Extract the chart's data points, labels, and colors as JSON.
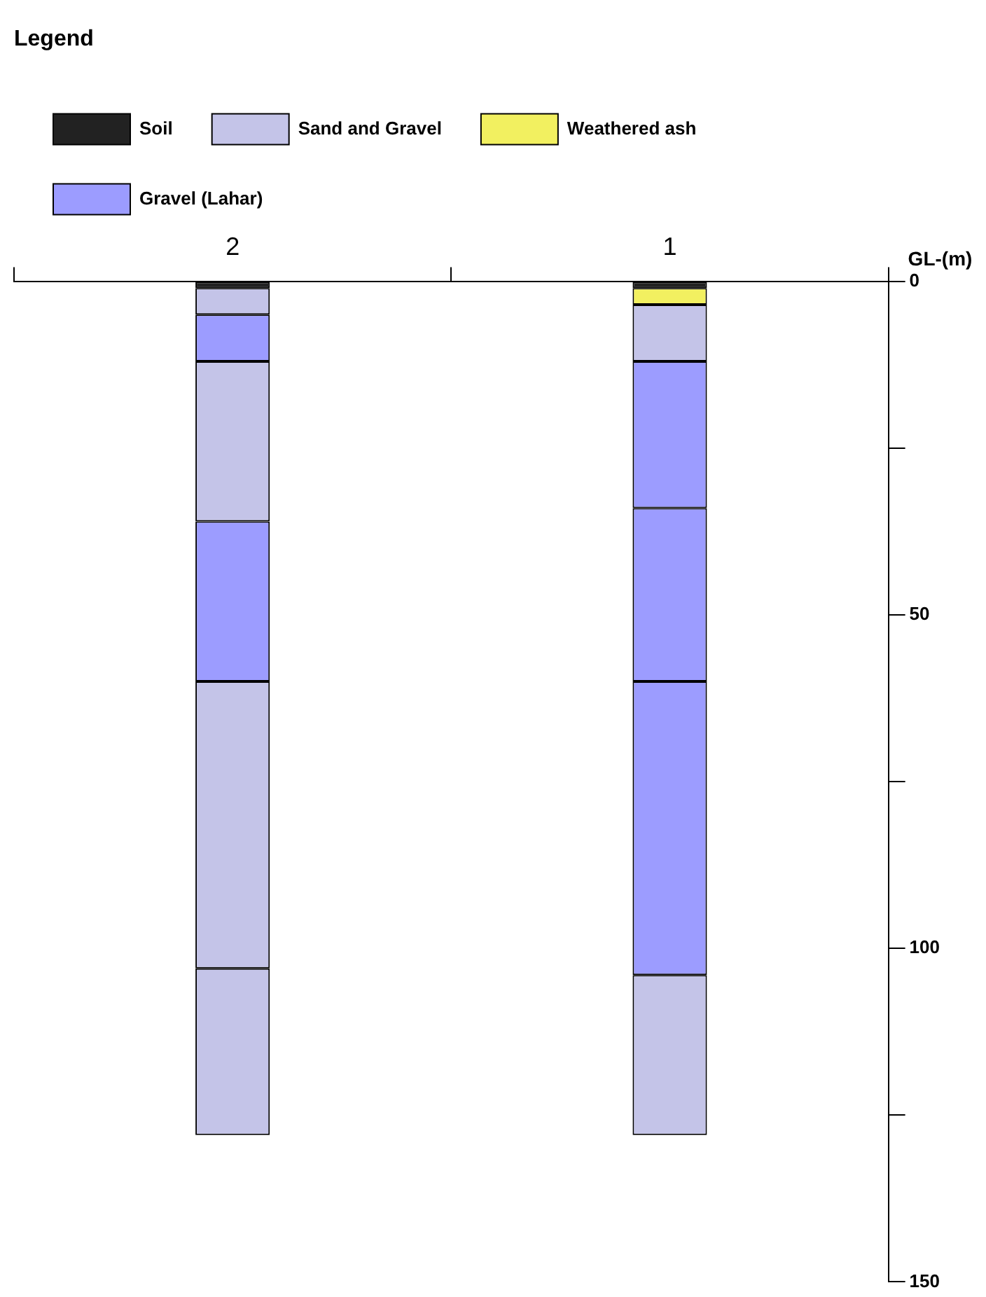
{
  "chart_data": {
    "type": "bar",
    "stacked": true,
    "legend_title": "Legend",
    "legend": "top left",
    "ylabel": "GL-(m)",
    "grid": false,
    "categories": [
      "2",
      "1"
    ],
    "ylim": [
      150,
      0
    ],
    "yticks": [
      0,
      {
        "value": 25,
        "label": null
      },
      50,
      {
        "value": 75,
        "label": null
      },
      100,
      {
        "value": 125,
        "label": null
      },
      150
    ],
    "series": [
      {
        "name": "Soil",
        "color": "#222222",
        "values": [
          1,
          1
        ]
      },
      {
        "name": "Sand and Gravel",
        "color": "#c4c4e8",
        "values": [
          4,
          null
        ]
      },
      {
        "name": "Weathered ash",
        "color": "#f2f060",
        "values": [
          null,
          2.5
        ]
      },
      {
        "name": "Gravel (Lahar)",
        "color": "#9c9cff",
        "values": [
          7,
          null
        ]
      },
      {
        "color": "#c4c4e8",
        "values": [
          24,
          8.5
        ]
      },
      {
        "color": "#9c9cff",
        "values": [
          24,
          22
        ]
      },
      {
        "color": "#9c9cff",
        "values": [
          null,
          26
        ]
      },
      {
        "color": "#c4c4e8",
        "values": [
          43,
          null
        ]
      },
      {
        "color": "#9c9cff",
        "values": [
          null,
          44
        ]
      },
      {
        "color": "#c4c4e8",
        "values": [
          25,
          24
        ]
      }
    ]
  }
}
